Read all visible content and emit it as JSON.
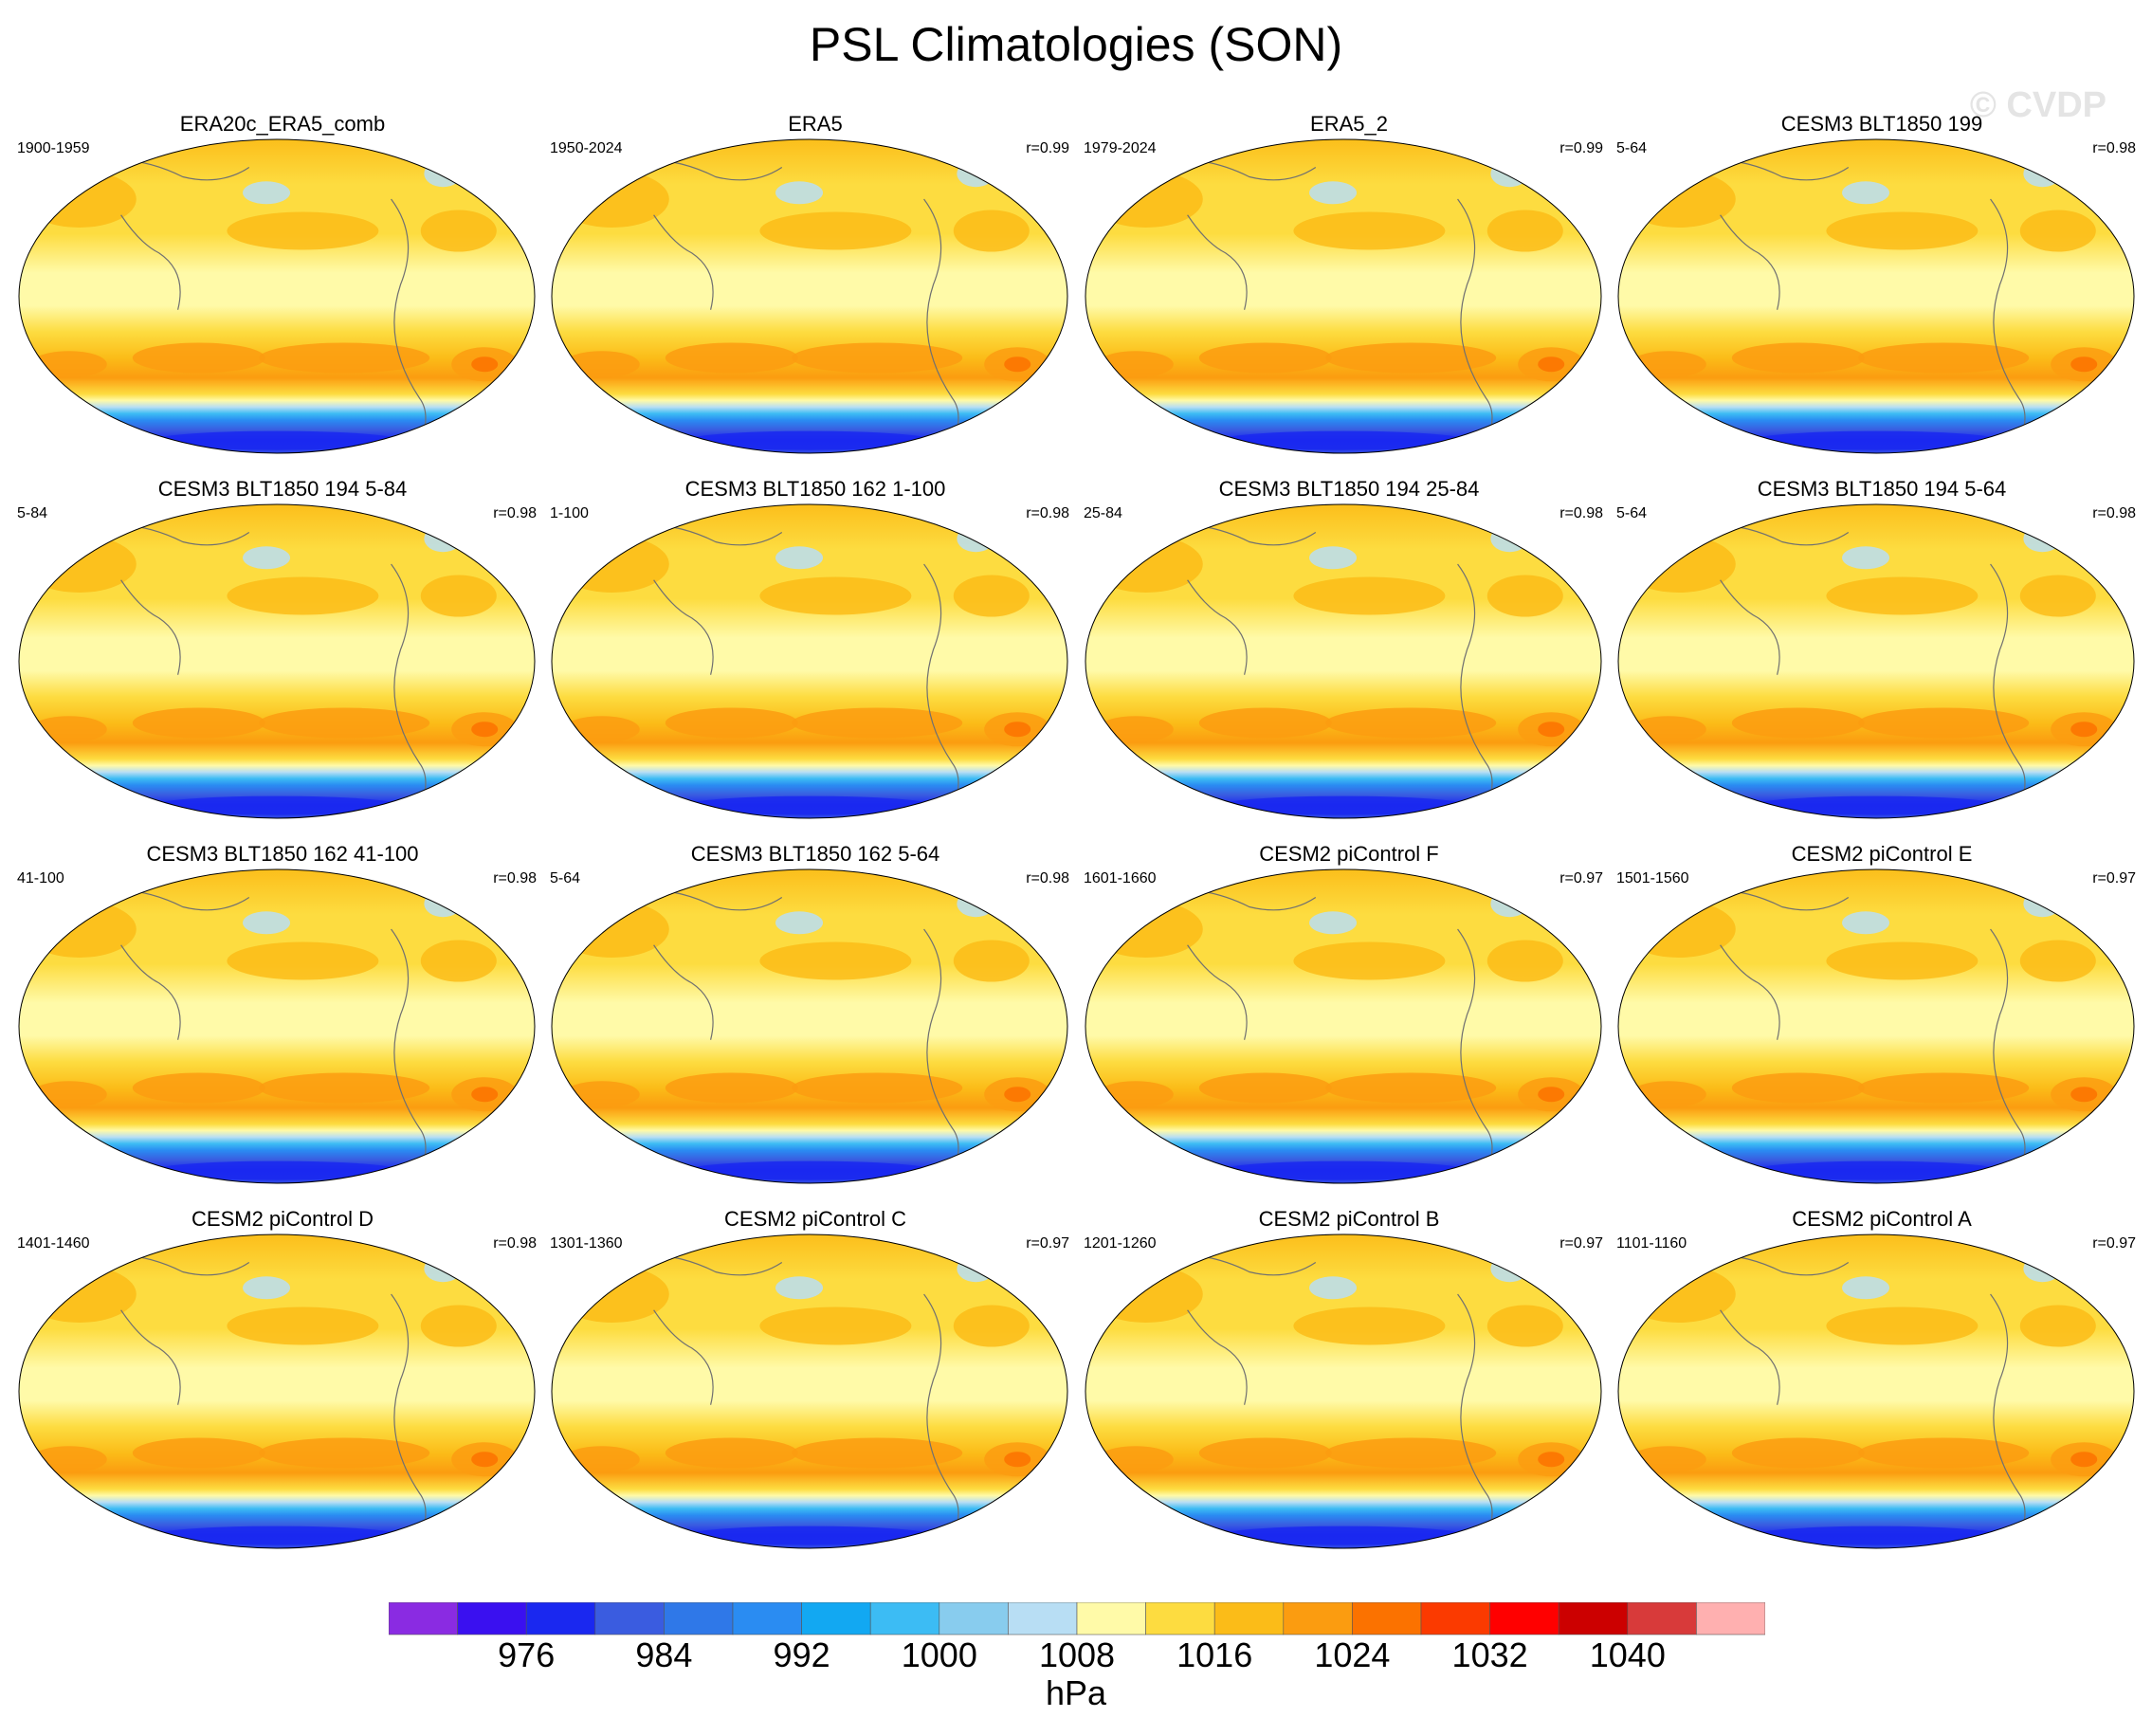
{
  "title": "PSL Climatologies (SON)",
  "watermark": "© CVDP",
  "panels": [
    {
      "title": "ERA20c_ERA5_comb",
      "years": "1900-1959",
      "r": ""
    },
    {
      "title": "ERA5",
      "years": "1950-2024",
      "r": "r=0.99"
    },
    {
      "title": "ERA5_2",
      "years": "1979-2024",
      "r": "r=0.99"
    },
    {
      "title": "CESM3 BLT1850 199",
      "years": "5-64",
      "r": "r=0.98"
    },
    {
      "title": "CESM3 BLT1850 194 5-84",
      "years": "5-84",
      "r": "r=0.98"
    },
    {
      "title": "CESM3 BLT1850 162 1-100",
      "years": "1-100",
      "r": "r=0.98"
    },
    {
      "title": "CESM3 BLT1850 194 25-84",
      "years": "25-84",
      "r": "r=0.98"
    },
    {
      "title": "CESM3 BLT1850 194 5-64",
      "years": "5-64",
      "r": "r=0.98"
    },
    {
      "title": "CESM3 BLT1850 162 41-100",
      "years": "41-100",
      "r": "r=0.98"
    },
    {
      "title": "CESM3 BLT1850 162 5-64",
      "years": "5-64",
      "r": "r=0.98"
    },
    {
      "title": "CESM2 piControl F",
      "years": "1601-1660",
      "r": "r=0.97"
    },
    {
      "title": "CESM2 piControl E",
      "years": "1501-1560",
      "r": "r=0.97"
    },
    {
      "title": "CESM2 piControl D",
      "years": "1401-1460",
      "r": "r=0.98"
    },
    {
      "title": "CESM2 piControl C",
      "years": "1301-1360",
      "r": "r=0.97"
    },
    {
      "title": "CESM2 piControl B",
      "years": "1201-1260",
      "r": "r=0.97"
    },
    {
      "title": "CESM2 piControl A",
      "years": "1101-1160",
      "r": "r=0.97"
    }
  ],
  "chart_data": {
    "type": "heatmap",
    "projection": "Robinson (Pacific-centered)",
    "field": "PSL climatology, SON",
    "units": "hPa",
    "colorbar": {
      "levels": [
        972,
        976,
        980,
        984,
        988,
        992,
        996,
        1000,
        1004,
        1008,
        1012,
        1016,
        1020,
        1024,
        1028,
        1032,
        1036,
        1040,
        1044
      ],
      "colors": [
        "#8a2be2",
        "#3a10f0",
        "#1a28f0",
        "#3a5ce0",
        "#2f78e8",
        "#2a8cf2",
        "#12a8f2",
        "#3cbcf4",
        "#88ccee",
        "#b8def4",
        "#fffaa8",
        "#fddc40",
        "#fbbc18",
        "#fb9c10",
        "#fb7200",
        "#fb3a00",
        "#ff0000",
        "#cc0000",
        "#d83a3a",
        "#ffb0b0"
      ],
      "tick_labels": [
        "976",
        "984",
        "992",
        "1000",
        "1008",
        "1016",
        "1024",
        "1032",
        "1040"
      ]
    }
  }
}
